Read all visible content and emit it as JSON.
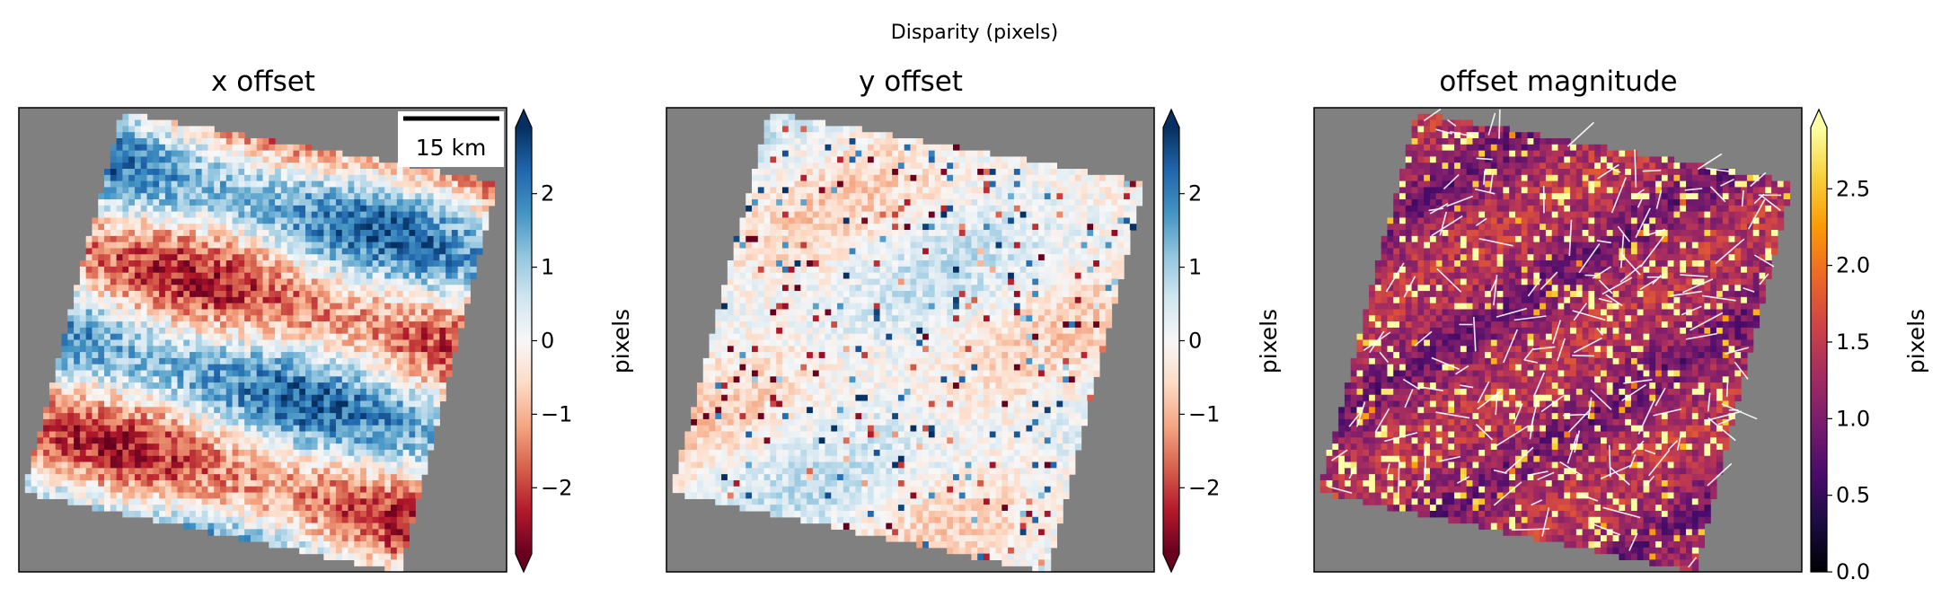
{
  "figure": {
    "suptitle": "Disparity (pixels)"
  },
  "colors": {
    "nodata": "#808080",
    "rdbu_stops": [
      "#67001f",
      "#b2182b",
      "#d6604d",
      "#f4a582",
      "#fddbc7",
      "#f7f7f7",
      "#d1e5f0",
      "#92c5de",
      "#4393c3",
      "#2166ac",
      "#053061"
    ],
    "inferno_stops": [
      "#000004",
      "#1b0c41",
      "#4a0c6b",
      "#781c6d",
      "#a52c60",
      "#cf4446",
      "#ed6925",
      "#fb9b06",
      "#f7d13d",
      "#fcffa4"
    ]
  },
  "chart_data": [
    {
      "type": "heatmap",
      "title": "x offset",
      "colormap": "RdBu",
      "colorbar_label": "pixels",
      "clim": [
        -2.9,
        2.9
      ],
      "colorbar_extend": "both",
      "colorbar_ticks": [
        -2,
        -1,
        0,
        1,
        2
      ],
      "colorbar_ticklabels": [
        "−2",
        "−1",
        "0",
        "1",
        "2"
      ],
      "scalebar_label": "15 km",
      "pattern": "diagonal blue/red bands of x offset"
    },
    {
      "type": "heatmap",
      "title": "y offset",
      "colormap": "RdBu",
      "colorbar_label": "pixels",
      "clim": [
        -2.9,
        2.9
      ],
      "colorbar_extend": "both",
      "colorbar_ticks": [
        -2,
        -1,
        0,
        1,
        2
      ],
      "colorbar_ticklabels": [
        "−2",
        "−1",
        "0",
        "1",
        "2"
      ],
      "pattern": "mostly near-zero with speckled red/blue clusters"
    },
    {
      "type": "heatmap",
      "title": "offset magnitude",
      "colormap": "inferno",
      "colorbar_label": "pixels",
      "clim": [
        0.0,
        2.9
      ],
      "colorbar_extend": "max",
      "colorbar_ticks": [
        0.0,
        0.5,
        1.0,
        1.5,
        2.0,
        2.5
      ],
      "colorbar_ticklabels": [
        "0.0",
        "0.5",
        "1.0",
        "1.5",
        "2.0",
        "2.5"
      ],
      "pattern": "dark purple background with bright yellow/orange patches and white arrow quiver"
    }
  ]
}
